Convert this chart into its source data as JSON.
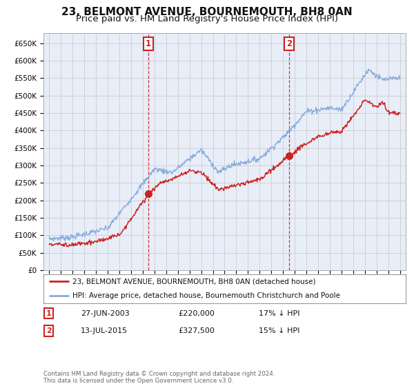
{
  "title": "23, BELMONT AVENUE, BOURNEMOUTH, BH8 0AN",
  "subtitle": "Price paid vs. HM Land Registry's House Price Index (HPI)",
  "ylabel_ticks": [
    "£0",
    "£50K",
    "£100K",
    "£150K",
    "£200K",
    "£250K",
    "£300K",
    "£350K",
    "£400K",
    "£450K",
    "£500K",
    "£550K",
    "£600K",
    "£650K"
  ],
  "ytick_values": [
    0,
    50000,
    100000,
    150000,
    200000,
    250000,
    300000,
    350000,
    400000,
    450000,
    500000,
    550000,
    600000,
    650000
  ],
  "ylim": [
    0,
    680000
  ],
  "xlim_start": 1994.5,
  "xlim_end": 2025.5,
  "marker1_x": 2003.49,
  "marker1_y": 220000,
  "marker1_label": "1",
  "marker2_x": 2015.54,
  "marker2_y": 327500,
  "marker2_label": "2",
  "annotation1_date": "27-JUN-2003",
  "annotation1_price": "£220,000",
  "annotation1_hpi": "17% ↓ HPI",
  "annotation2_date": "13-JUL-2015",
  "annotation2_price": "£327,500",
  "annotation2_hpi": "15% ↓ HPI",
  "legend_line1": "23, BELMONT AVENUE, BOURNEMOUTH, BH8 0AN (detached house)",
  "legend_line2": "HPI: Average price, detached house, Bournemouth Christchurch and Poole",
  "footnote": "Contains HM Land Registry data © Crown copyright and database right 2024.\nThis data is licensed under the Open Government Licence v3.0.",
  "line_color_red": "#cc2222",
  "line_color_blue": "#88aadd",
  "background_color": "#ffffff",
  "grid_color": "#cccccc",
  "title_fontsize": 11,
  "subtitle_fontsize": 9.5
}
